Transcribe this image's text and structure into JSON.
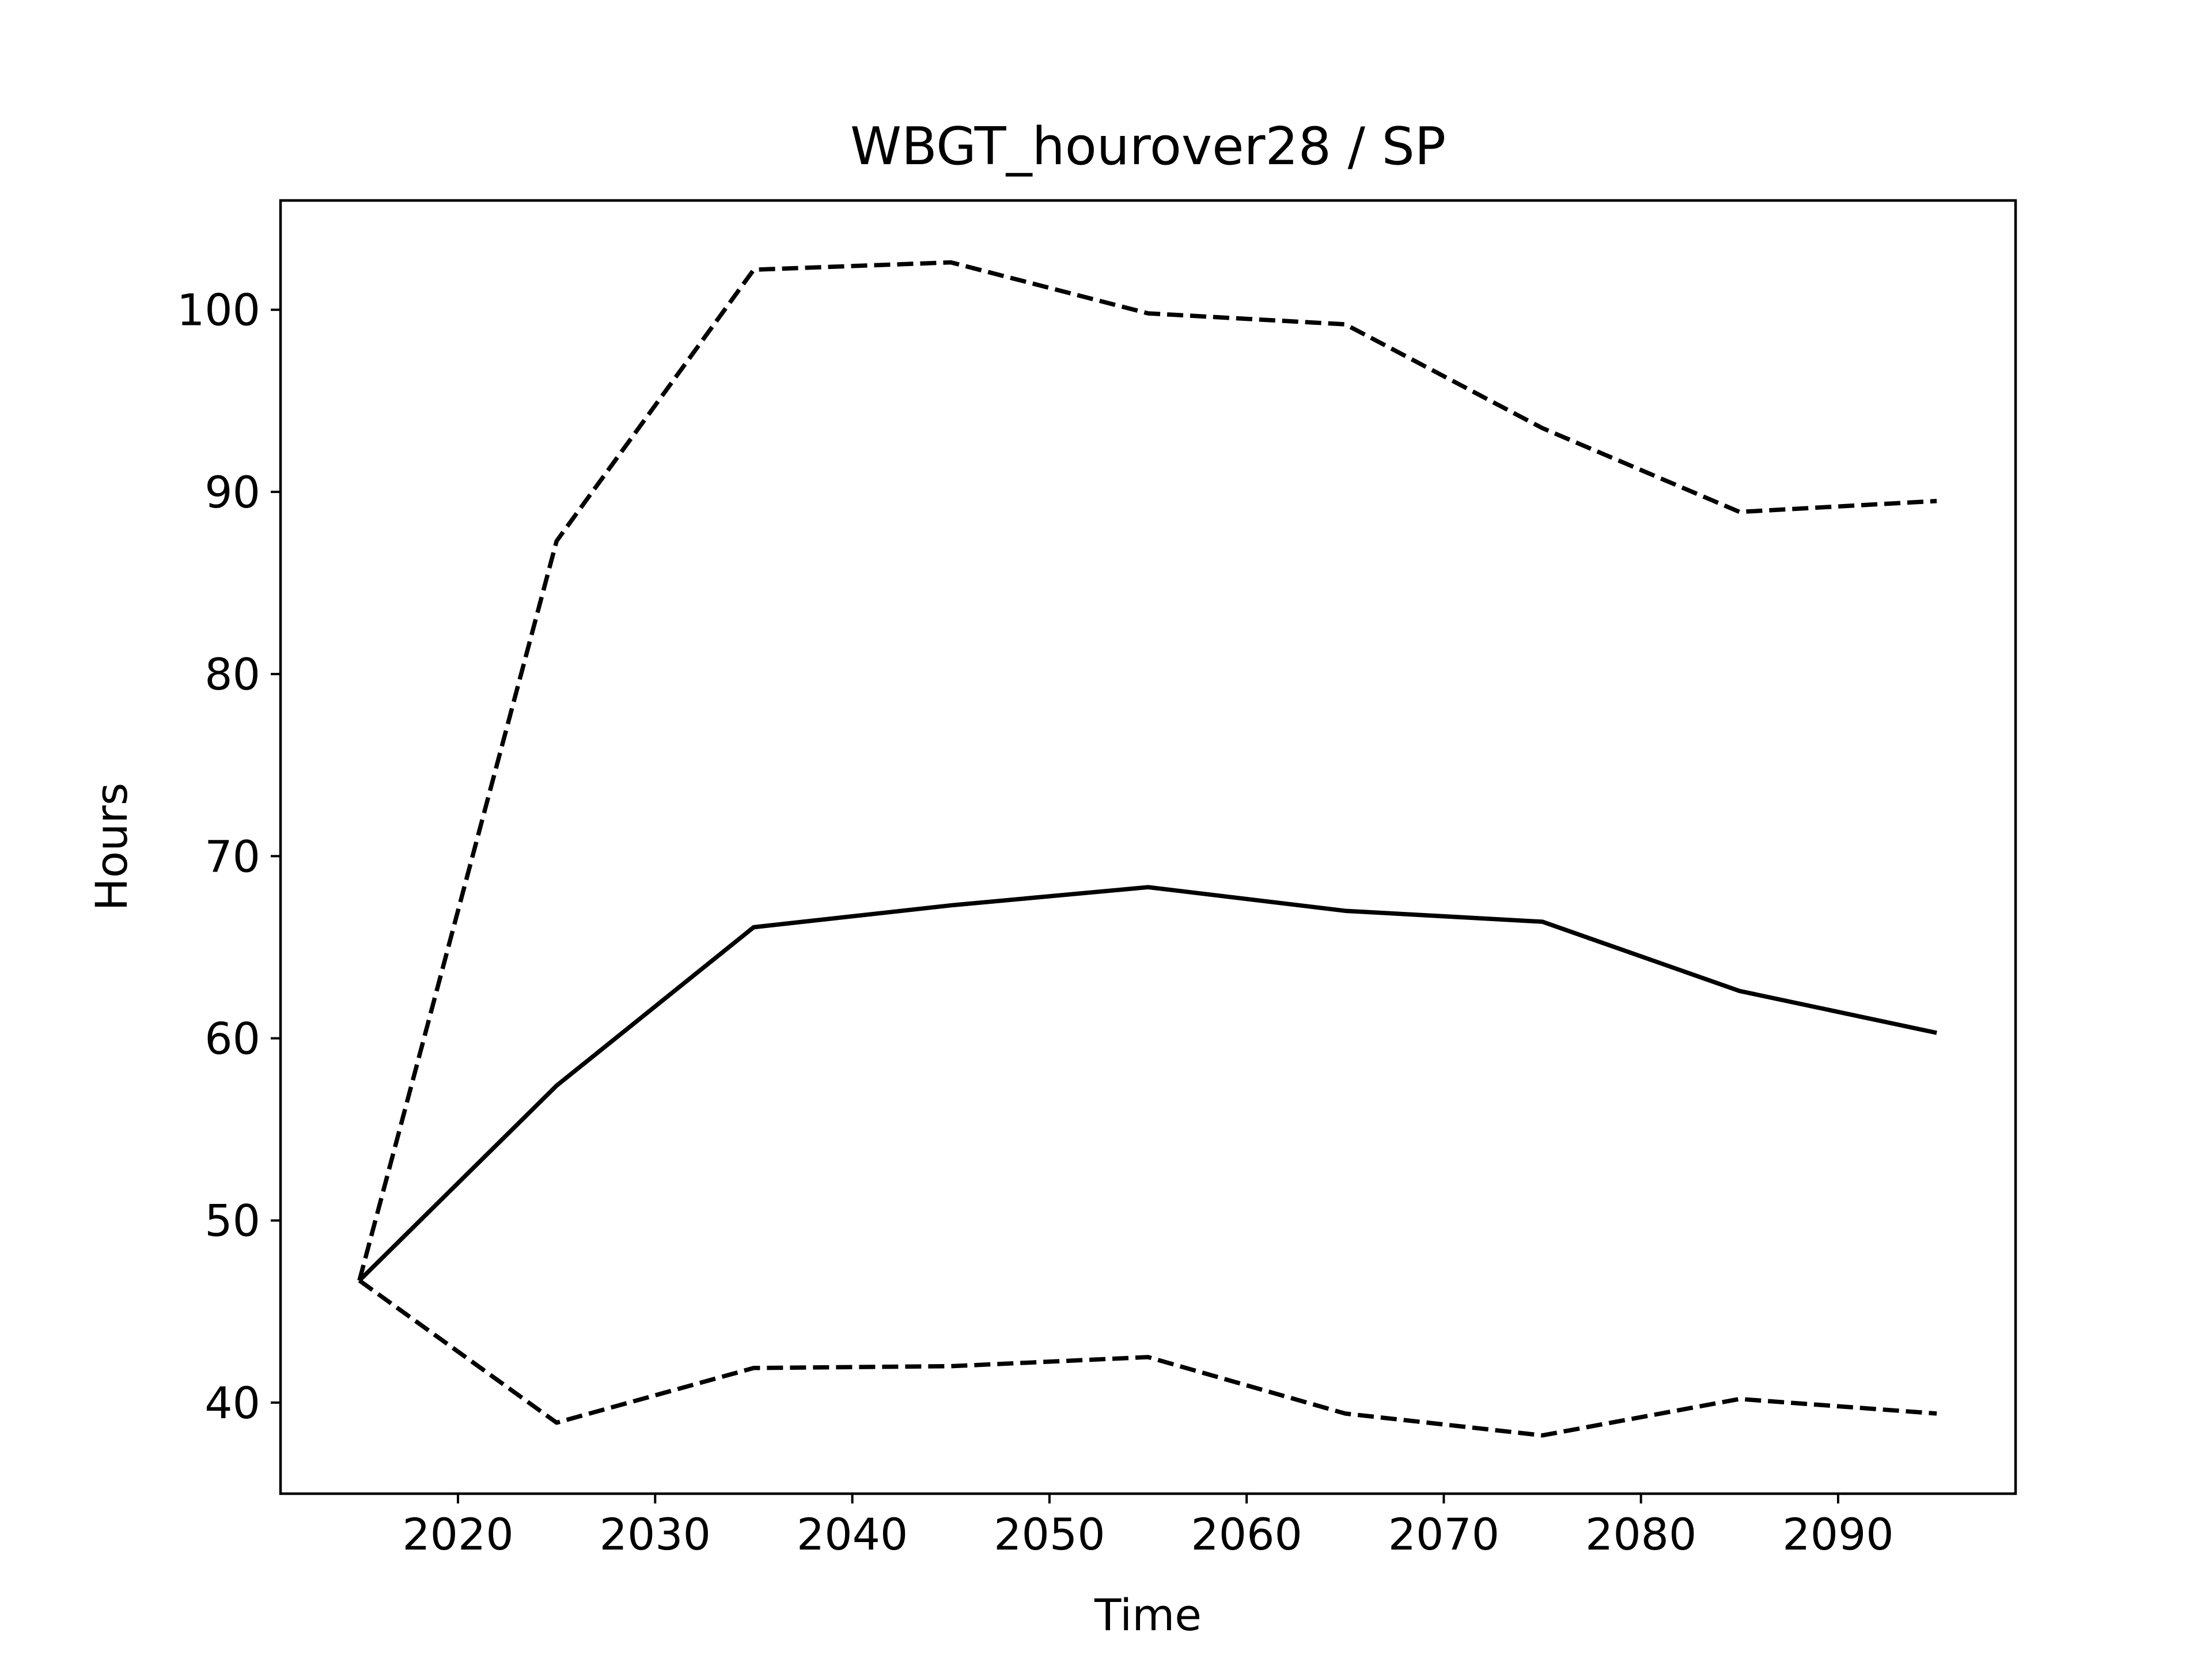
{
  "chart_data": {
    "type": "line",
    "title": "WBGT_hourover28 / SP",
    "xlabel": "Time",
    "ylabel": "Hours",
    "x": [
      2015,
      2025,
      2035,
      2045,
      2055,
      2065,
      2075,
      2085,
      2095
    ],
    "xlim": [
      2011,
      2099
    ],
    "ylim": [
      35,
      106
    ],
    "xticks": [
      2020,
      2030,
      2040,
      2050,
      2060,
      2070,
      2080,
      2090
    ],
    "yticks": [
      40,
      50,
      60,
      70,
      80,
      90,
      100
    ],
    "grid": false,
    "legend": "none",
    "series": [
      {
        "style": "solid",
        "color": "#000000",
        "values": [
          46.7,
          57.4,
          66.1,
          67.3,
          68.3,
          67.0,
          66.4,
          62.6,
          60.3
        ]
      },
      {
        "style": "dashed",
        "color": "#000000",
        "values": [
          46.7,
          87.3,
          102.2,
          102.6,
          99.8,
          99.2,
          93.5,
          88.9,
          89.5
        ]
      },
      {
        "style": "dashed",
        "color": "#000000",
        "values": [
          46.7,
          38.9,
          41.9,
          42.0,
          42.5,
          39.4,
          38.2,
          40.2,
          39.4
        ]
      }
    ]
  }
}
